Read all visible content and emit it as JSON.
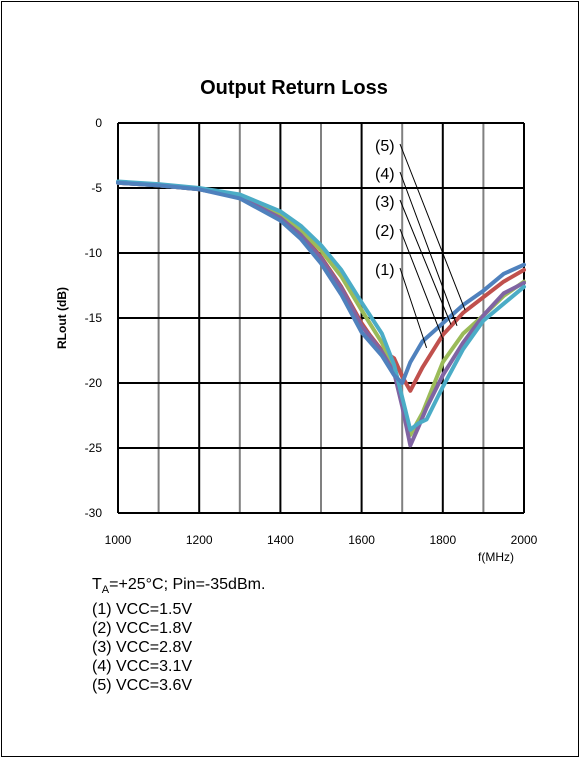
{
  "chart_data": {
    "type": "line",
    "title": "Output Return Loss",
    "xlabel": "f(MHz)",
    "ylabel": "RLout (dB)",
    "xlim": [
      1000,
      2000
    ],
    "ylim": [
      -30,
      0
    ],
    "xticks": [
      "1000",
      "1200",
      "1400",
      "1600",
      "1800",
      "2000"
    ],
    "yticks": [
      "0",
      "-5",
      "-10",
      "-15",
      "-20",
      "-25",
      "-30"
    ],
    "grid": true,
    "series": [
      {
        "name": "(1)",
        "color": "#C0504D",
        "x": [
          1000,
          1100,
          1200,
          1300,
          1400,
          1450,
          1500,
          1550,
          1600,
          1620,
          1650,
          1680,
          1700,
          1720,
          1750,
          1800,
          1850,
          1900,
          1950,
          2000
        ],
        "y": [
          -4.6,
          -4.8,
          -5.1,
          -5.7,
          -7.2,
          -8.5,
          -10.3,
          -12.6,
          -15.4,
          -16.3,
          -17.5,
          -18.1,
          -19.5,
          -20.6,
          -18.8,
          -16.3,
          -14.6,
          -13.4,
          -12.2,
          -11.3
        ]
      },
      {
        "name": "(2)",
        "color": "#9BBB59",
        "x": [
          1000,
          1100,
          1200,
          1300,
          1400,
          1450,
          1500,
          1550,
          1600,
          1650,
          1680,
          1700,
          1720,
          1750,
          1800,
          1850,
          1900,
          1950,
          2000
        ],
        "y": [
          -4.6,
          -4.8,
          -5.1,
          -5.6,
          -7.0,
          -8.2,
          -9.8,
          -11.8,
          -14.4,
          -16.9,
          -18.9,
          -21.2,
          -24.0,
          -22.3,
          -18.4,
          -16.2,
          -14.8,
          -13.3,
          -12.2
        ]
      },
      {
        "name": "(3)",
        "color": "#8064A2",
        "x": [
          1000,
          1100,
          1200,
          1300,
          1400,
          1450,
          1500,
          1550,
          1600,
          1650,
          1680,
          1700,
          1720,
          1740,
          1760,
          1800,
          1850,
          1900,
          1950,
          2000
        ],
        "y": [
          -4.6,
          -4.8,
          -5.1,
          -5.7,
          -7.3,
          -8.6,
          -10.4,
          -12.7,
          -15.6,
          -17.6,
          -19.2,
          -21.8,
          -24.8,
          -23.4,
          -21.9,
          -19.4,
          -16.9,
          -14.8,
          -13.1,
          -12.3
        ]
      },
      {
        "name": "(4)",
        "color": "#4BACC6",
        "x": [
          1000,
          1100,
          1200,
          1300,
          1400,
          1450,
          1500,
          1550,
          1600,
          1650,
          1680,
          1700,
          1720,
          1740,
          1760,
          1800,
          1850,
          1900,
          1950,
          2000
        ],
        "y": [
          -4.5,
          -4.7,
          -5.0,
          -5.5,
          -6.8,
          -7.9,
          -9.4,
          -11.3,
          -13.8,
          -16.2,
          -18.6,
          -21.1,
          -23.6,
          -23.1,
          -22.8,
          -20.3,
          -17.4,
          -15.2,
          -13.9,
          -12.6
        ]
      },
      {
        "name": "(5)",
        "color": "#4F81BD",
        "x": [
          1000,
          1100,
          1200,
          1300,
          1400,
          1450,
          1500,
          1550,
          1600,
          1650,
          1680,
          1700,
          1720,
          1750,
          1800,
          1850,
          1900,
          1950,
          2000
        ],
        "y": [
          -4.6,
          -4.8,
          -5.1,
          -5.8,
          -7.5,
          -8.9,
          -10.8,
          -13.2,
          -16.1,
          -17.9,
          -19.4,
          -20.0,
          -18.4,
          -16.8,
          -15.4,
          -14.0,
          -12.9,
          -11.6,
          -10.9
        ]
      }
    ],
    "annotations": [
      "(1)",
      "(2)",
      "(3)",
      "(4)",
      "(5)"
    ]
  },
  "notes": {
    "condition_prefix": "T",
    "condition_sub": "A",
    "condition_rest": "=+25°C; Pin=-35dBm.",
    "lines": [
      "(1) VCC=1.5V",
      "(2) VCC=1.8V",
      "(3) VCC=2.8V",
      "(4) VCC=3.1V",
      "(5) VCC=3.6V"
    ]
  }
}
